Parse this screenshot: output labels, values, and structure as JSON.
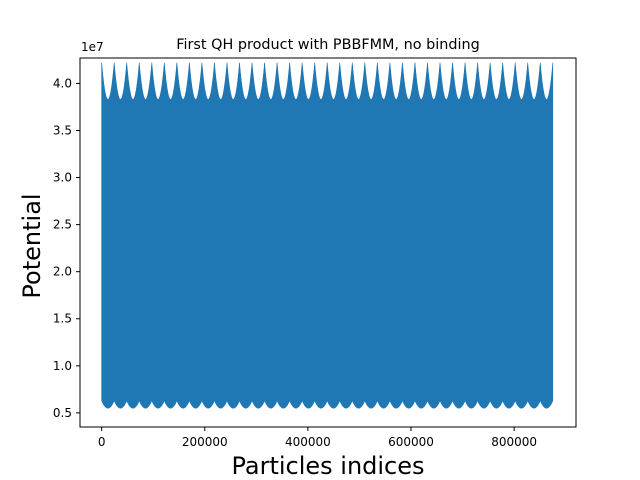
{
  "chart_data": {
    "type": "area",
    "title": "First QH product with PBBFMM, no binding",
    "xlabel": "Particles indices",
    "ylabel": "Potential",
    "y_offset_label": "1e7",
    "xlim": [
      -42000,
      920000
    ],
    "ylim": [
      3500000,
      42700000
    ],
    "x_range_data": [
      0,
      875000
    ],
    "x_ticks": [
      0,
      200000,
      400000,
      600000,
      800000
    ],
    "x_tick_labels": [
      "0",
      "200000",
      "400000",
      "600000",
      "800000"
    ],
    "y_ticks": [
      5000000,
      10000000,
      15000000,
      20000000,
      25000000,
      30000000,
      35000000,
      40000000
    ],
    "y_tick_labels": [
      "0.5",
      "1.0",
      "1.5",
      "2.0",
      "2.5",
      "3.0",
      "3.5",
      "4.0"
    ],
    "series": [
      {
        "color": "#1f77b4",
        "periods": 36,
        "upper_envelope": {
          "peak": 42200000,
          "trough": 38300000
        },
        "lower_envelope": {
          "peak": 6300000,
          "trough": 5500000
        }
      }
    ],
    "grid": false,
    "legend": "none"
  }
}
